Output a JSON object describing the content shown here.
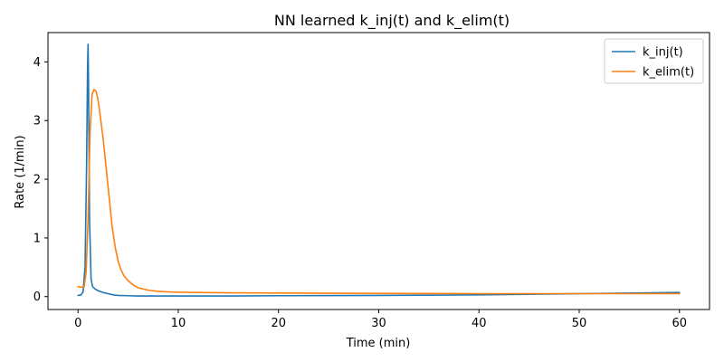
{
  "chart_data": {
    "type": "line",
    "title": "NN learned k_inj(t) and k_elim(t)",
    "xlabel": "Time (min)",
    "ylabel": "Rate (1/min)",
    "xlim": [
      -3,
      63
    ],
    "ylim": [
      -0.22,
      4.5
    ],
    "xticks": [
      0,
      10,
      20,
      30,
      40,
      50,
      60
    ],
    "yticks": [
      0,
      1,
      2,
      3,
      4
    ],
    "grid": false,
    "legend_position": "top-right",
    "series": [
      {
        "name": "k_inj(t)",
        "color": "#1f77b4",
        "x": [
          0,
          0.3,
          0.5,
          0.7,
          0.85,
          0.95,
          1.0,
          1.05,
          1.15,
          1.3,
          1.45,
          1.7,
          2,
          2.5,
          3,
          3.5,
          4,
          5,
          6,
          8,
          10,
          15,
          20,
          30,
          40,
          50,
          60
        ],
        "y": [
          0.02,
          0.03,
          0.08,
          0.5,
          2.2,
          3.9,
          4.3,
          3.6,
          1.3,
          0.3,
          0.17,
          0.13,
          0.1,
          0.07,
          0.05,
          0.03,
          0.02,
          0.015,
          0.01,
          0.01,
          0.01,
          0.01,
          0.015,
          0.02,
          0.03,
          0.05,
          0.07
        ]
      },
      {
        "name": "k_elim(t)",
        "color": "#ff7f0e",
        "x": [
          0,
          0.3,
          0.6,
          0.8,
          1.0,
          1.2,
          1.4,
          1.6,
          1.8,
          2.0,
          2.2,
          2.5,
          2.8,
          3.1,
          3.4,
          3.7,
          4.0,
          4.3,
          4.6,
          5.0,
          5.5,
          6,
          7,
          8,
          9,
          10,
          12,
          15,
          20,
          30,
          40,
          50,
          60
        ],
        "y": [
          0.17,
          0.16,
          0.16,
          0.4,
          1.3,
          2.8,
          3.45,
          3.53,
          3.5,
          3.35,
          3.1,
          2.7,
          2.2,
          1.7,
          1.2,
          0.85,
          0.6,
          0.45,
          0.35,
          0.27,
          0.2,
          0.15,
          0.11,
          0.09,
          0.08,
          0.075,
          0.07,
          0.065,
          0.06,
          0.055,
          0.05,
          0.05,
          0.05
        ]
      }
    ]
  }
}
